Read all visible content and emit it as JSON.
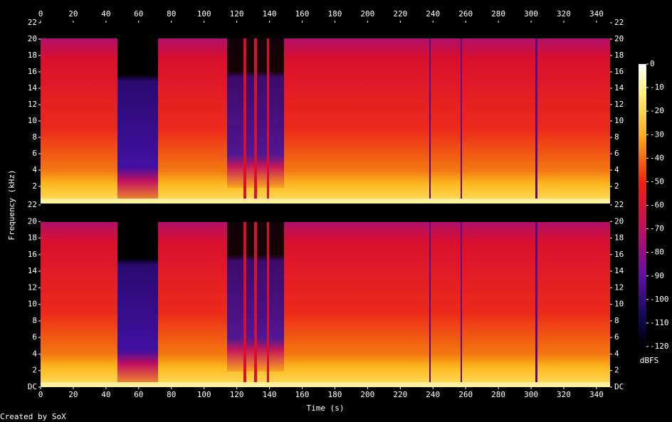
{
  "chart_data": [
    {
      "type": "spectrogram",
      "xlim": [
        0,
        348.3
      ],
      "xticks": [
        0,
        20,
        40,
        60,
        80,
        100,
        120,
        140,
        160,
        180,
        200,
        220,
        240,
        260,
        280,
        300,
        320,
        340
      ],
      "ylim": [
        0,
        22
      ],
      "yticks": [
        2,
        4,
        6,
        8,
        10,
        12,
        14,
        16,
        18,
        20,
        22
      ]
    },
    {
      "type": "spectrogram",
      "xlim": [
        0,
        348.3
      ],
      "xticks": [
        0,
        20,
        40,
        60,
        80,
        100,
        120,
        140,
        160,
        180,
        200,
        220,
        240,
        260,
        280,
        300,
        320,
        340
      ],
      "ylim": [
        0,
        22
      ],
      "yticks": [
        {
          "value": 0,
          "label": "DC"
        },
        2,
        4,
        6,
        8,
        10,
        12,
        14,
        16,
        18,
        20,
        22
      ]
    }
  ],
  "xlabel": "Time (s)",
  "ylabel": "Frequency (kHz)",
  "colorbar": {
    "label": "dBFS",
    "lim": [
      -120,
      0
    ],
    "ticks": [
      0,
      -10,
      -20,
      -30,
      -40,
      -50,
      -60,
      -70,
      -80,
      -90,
      -100,
      -110,
      -120
    ]
  },
  "credit": "Created by SoX"
}
